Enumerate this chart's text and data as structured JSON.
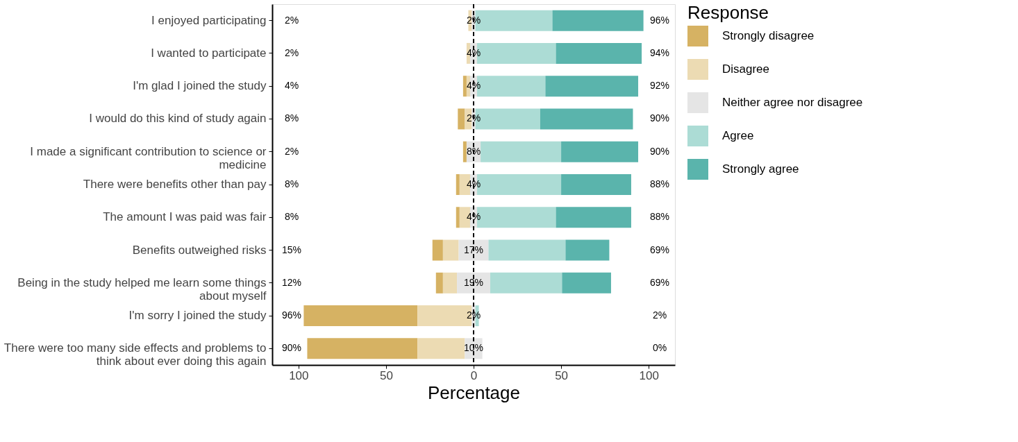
{
  "chart_data": {
    "type": "bar",
    "orientation": "horizontal",
    "xlabel": "Percentage",
    "legend_title": "Response",
    "legend": "right",
    "grid": false,
    "categories": [
      "I enjoyed participating",
      "I wanted to participate",
      "I'm glad I joined the study",
      "I would do this kind of study again",
      "I made a significant contribution to science or medicine",
      "There were benefits other than pay",
      "The amount I was paid was fair",
      "Benefits outweighed risks",
      "Being in the study helped me learn some things about myself",
      "I'm sorry I joined the study",
      "There were too many side effects and problems to think about ever doing this again"
    ],
    "xlim": [
      -115,
      115
    ],
    "xticks": [
      {
        "value": -100,
        "label": "100"
      },
      {
        "value": -50,
        "label": "50"
      },
      0,
      50,
      100
    ],
    "series": [
      {
        "name": "Strongly disagree",
        "color": "#d6b263",
        "values": [
          null,
          null,
          2,
          4,
          2,
          2,
          2,
          6,
          4,
          65,
          63
        ],
        "base": [
          null,
          null,
          -6,
          -9,
          -6,
          -10,
          -10,
          -23.5,
          -21.5,
          -97,
          -95
        ]
      },
      {
        "name": "Disagree",
        "color": "#ecdbb3",
        "values": [
          2,
          2,
          2,
          4,
          null,
          6,
          6,
          9,
          8,
          31,
          27
        ],
        "base": [
          -3,
          -4,
          -4,
          -5,
          null,
          -8,
          -8,
          -17.5,
          -17.5,
          -32,
          -32
        ]
      },
      {
        "name": "Neither agree nor disagree",
        "color": "#e5e5e5",
        "values": [
          2,
          4,
          4,
          2,
          8,
          4,
          4,
          17,
          19,
          2,
          10
        ],
        "base": [
          -1,
          -2,
          -2,
          -1,
          -4,
          -2,
          -2,
          -8.5,
          -9.5,
          -1,
          -5
        ],
        "value_labels": [
          "2%",
          "4%",
          "4%",
          "2%",
          "8%",
          "4%",
          "4%",
          "17%",
          "19%",
          "2%",
          "10%"
        ]
      },
      {
        "name": "Agree",
        "color": "#acdcd5",
        "values": [
          44,
          45,
          39,
          37,
          46,
          48,
          45,
          44,
          41,
          2,
          null
        ],
        "base": [
          1,
          2,
          2,
          1,
          4,
          2,
          2,
          8.5,
          9.5,
          1,
          null
        ]
      },
      {
        "name": "Strongly agree",
        "color": "#5ab4ac",
        "values": [
          52,
          49,
          53,
          53,
          44,
          40,
          43,
          25,
          28,
          null,
          null
        ],
        "base": [
          45,
          47,
          41,
          38,
          50,
          50,
          47,
          52.5,
          50.5,
          null,
          null
        ]
      }
    ],
    "ref_lines": [
      {
        "axis": "x",
        "value": 0,
        "color": "#000000",
        "line_style": "dashed"
      }
    ],
    "annotations": [
      "2%",
      "96%",
      "2%",
      "94%",
      "4%",
      "92%",
      "8%",
      "90%",
      "2%",
      "90%",
      "8%",
      "88%",
      "8%",
      "88%",
      "15%",
      "69%",
      "12%",
      "69%",
      "96%",
      "2%",
      "90%",
      "0%"
    ]
  }
}
